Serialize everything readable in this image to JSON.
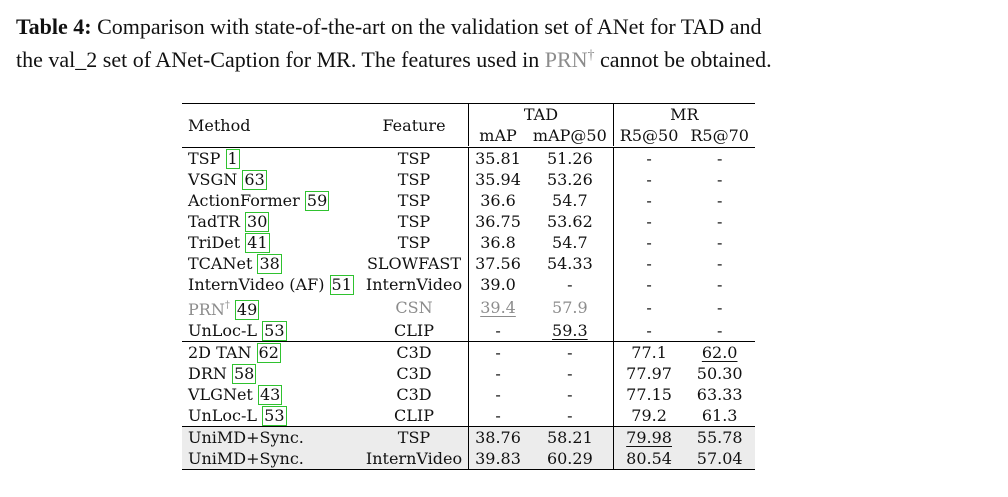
{
  "caption": {
    "label": "Table 4:",
    "text1": "Comparison with state-of-the-art on the validation set of ANet for TAD and",
    "text2a": "the val_2 set of ANet-Caption for MR. The features used in",
    "prn": "PRN",
    "dagger": "†",
    "text2b": "cannot be obtained."
  },
  "table": {
    "headers": {
      "method": "Method",
      "feature": "Feature",
      "tad": "TAD",
      "mr": "MR",
      "map": "mAP",
      "map50": "mAP@50",
      "r550": "R5@50",
      "r570": "R5@70"
    },
    "rows": [
      {
        "method": "TSP",
        "ref": "1",
        "feature": "TSP",
        "map": "35.81",
        "map50": "51.26",
        "r550": "-",
        "r570": "-"
      },
      {
        "method": "VSGN",
        "ref": "63",
        "feature": "TSP",
        "map": "35.94",
        "map50": "53.26",
        "r550": "-",
        "r570": "-"
      },
      {
        "method": "ActionFormer",
        "ref": "59",
        "feature": "TSP",
        "map": "36.6",
        "map50": "54.7",
        "r550": "-",
        "r570": "-"
      },
      {
        "method": "TadTR",
        "ref": "30",
        "feature": "TSP",
        "map": "36.75",
        "map50": "53.62",
        "r550": "-",
        "r570": "-"
      },
      {
        "method": "TriDet",
        "ref": "41",
        "feature": "TSP",
        "map": "36.8",
        "map50": "54.7",
        "r550": "-",
        "r570": "-"
      },
      {
        "method": "TCANet",
        "ref": "38",
        "feature": "SLOWFAST",
        "map": "37.56",
        "map50": "54.33",
        "r550": "-",
        "r570": "-"
      },
      {
        "method": "InternVideo (AF)",
        "ref": "51",
        "feature": "InternVideo",
        "map": "39.0",
        "map50": "-",
        "r550": "-",
        "r570": "-"
      },
      {
        "method": "PRN",
        "dagger": "†",
        "ref": "49",
        "feature": "CSN",
        "map": "39.4",
        "map50": "57.9",
        "r550": "-",
        "r570": "-"
      },
      {
        "method": "UnLoc-L",
        "ref": "53",
        "feature": "CLIP",
        "map": "-",
        "map50": "59.3",
        "r550": "-",
        "r570": "-"
      },
      {
        "method": "2D TAN",
        "ref": "62",
        "feature": "C3D",
        "map": "-",
        "map50": "-",
        "r550": "77.1",
        "r570": "62.0"
      },
      {
        "method": "DRN",
        "ref": "58",
        "feature": "C3D",
        "map": "-",
        "map50": "-",
        "r550": "77.97",
        "r570": "50.30"
      },
      {
        "method": "VLGNet",
        "ref": "43",
        "feature": "C3D",
        "map": "-",
        "map50": "-",
        "r550": "77.15",
        "r570": "63.33"
      },
      {
        "method": "UnLoc-L",
        "ref": "53",
        "feature": "CLIP",
        "map": "-",
        "map50": "-",
        "r550": "79.2",
        "r570": "61.3"
      },
      {
        "method": "UniMD+Sync.",
        "feature": "TSP",
        "map": "38.76",
        "map50": "58.21",
        "r550": "79.98",
        "r570": "55.78"
      },
      {
        "method": "UniMD+Sync.",
        "feature": "InternVideo",
        "map": "39.83",
        "map50": "60.29",
        "r550": "80.54",
        "r570": "57.04"
      }
    ]
  }
}
